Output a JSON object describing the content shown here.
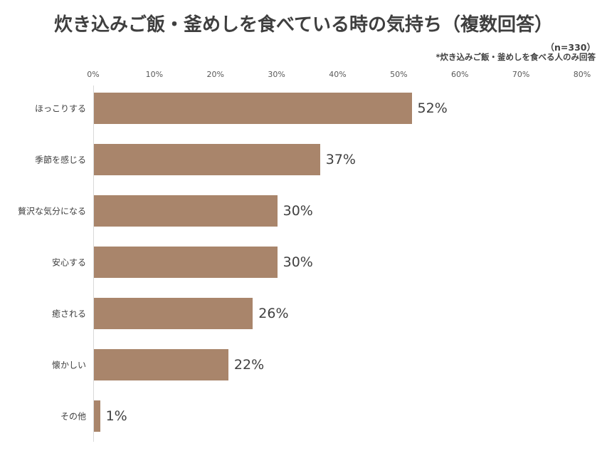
{
  "chart_data": {
    "type": "bar",
    "orientation": "horizontal",
    "title": "炊き込みご飯・釜めしを食べている時の気持ち（複数回答）",
    "sample_note": "（n=330）",
    "subnote": "*炊き込みご飯・釜めしを食べる人のみ回答",
    "xlabel": "",
    "ylabel": "",
    "xlim": [
      0,
      80
    ],
    "x_ticks": [
      "0%",
      "10%",
      "20%",
      "30%",
      "40%",
      "50%",
      "60%",
      "70%",
      "80%"
    ],
    "grid": false,
    "legend": null,
    "bar_color": "#a9856b",
    "categories": [
      "ほっこりする",
      "季節を感じる",
      "贅沢な気分になる",
      "安心する",
      "癒される",
      "懐かしい",
      "その他"
    ],
    "values": [
      52,
      37,
      30,
      30,
      26,
      22,
      1
    ],
    "value_labels": [
      "52%",
      "37%",
      "30%",
      "30%",
      "26%",
      "22%",
      "1%"
    ]
  }
}
